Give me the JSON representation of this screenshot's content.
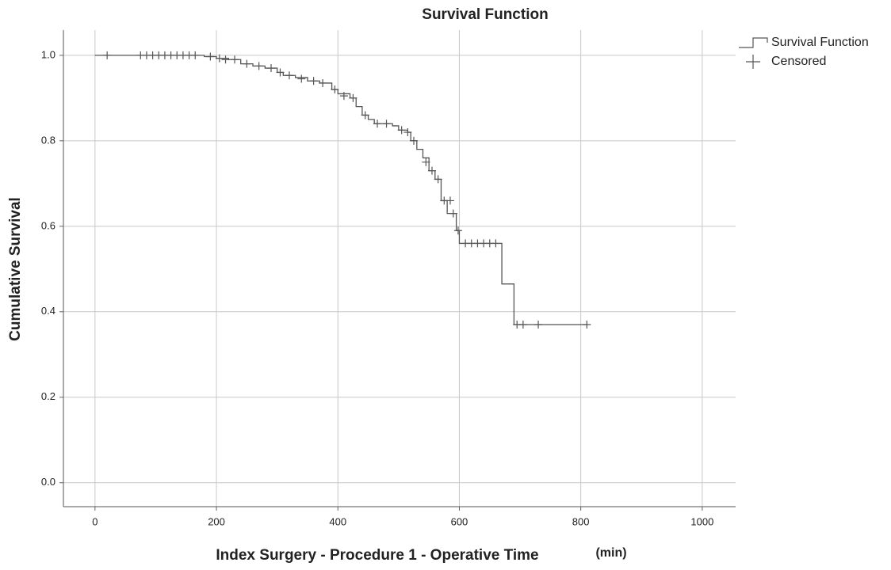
{
  "chart_data": {
    "type": "step",
    "title": "Survival Function",
    "x_label": "Index Surgery - Procedure 1 - Operative Time",
    "x_unit": "(min)",
    "y_label": "Cumulative Survival",
    "xlim": [
      -52,
      1055
    ],
    "ylim": [
      -0.056,
      1.059
    ],
    "xticks": [
      0,
      200,
      400,
      600,
      800,
      1000
    ],
    "yticks": [
      {
        "value": 0,
        "label": "0.0"
      },
      0.2,
      0.4,
      0.6,
      0.8,
      {
        "value": 1,
        "label": "1.0"
      }
    ],
    "grid": true,
    "legend": "top-right",
    "series": [
      {
        "name": "Survival Function",
        "color": "#555555",
        "x": [
          0,
          170,
          180,
          200,
          220,
          240,
          260,
          280,
          300,
          310,
          330,
          350,
          370,
          390,
          400,
          420,
          430,
          440,
          450,
          460,
          490,
          500,
          515,
          520,
          530,
          540,
          550,
          560,
          570,
          580,
          595,
          600,
          670,
          690,
          810
        ],
        "values": [
          1.0,
          1.0,
          0.997,
          0.993,
          0.99,
          0.98,
          0.975,
          0.97,
          0.96,
          0.953,
          0.948,
          0.94,
          0.935,
          0.92,
          0.91,
          0.9,
          0.88,
          0.86,
          0.85,
          0.84,
          0.835,
          0.825,
          0.82,
          0.8,
          0.78,
          0.76,
          0.73,
          0.71,
          0.66,
          0.63,
          0.59,
          0.56,
          0.465,
          0.37,
          0.37
        ]
      },
      {
        "name": "Censored",
        "color": "#555555",
        "x": [
          20,
          75,
          85,
          95,
          105,
          115,
          125,
          135,
          145,
          155,
          165,
          190,
          205,
          215,
          230,
          250,
          270,
          290,
          305,
          320,
          340,
          360,
          375,
          395,
          410,
          425,
          445,
          465,
          480,
          505,
          515,
          525,
          545,
          555,
          565,
          575,
          585,
          590,
          598,
          610,
          620,
          630,
          640,
          650,
          660,
          695,
          705,
          730,
          810
        ],
        "values": [
          1.0,
          1.0,
          1.0,
          1.0,
          1.0,
          1.0,
          1.0,
          1.0,
          1.0,
          1.0,
          1.0,
          0.997,
          0.993,
          0.99,
          0.99,
          0.98,
          0.975,
          0.97,
          0.96,
          0.953,
          0.945,
          0.94,
          0.935,
          0.92,
          0.905,
          0.9,
          0.86,
          0.84,
          0.84,
          0.825,
          0.82,
          0.8,
          0.75,
          0.73,
          0.71,
          0.66,
          0.66,
          0.63,
          0.59,
          0.56,
          0.56,
          0.56,
          0.56,
          0.56,
          0.56,
          0.37,
          0.37,
          0.37,
          0.37
        ]
      }
    ]
  }
}
